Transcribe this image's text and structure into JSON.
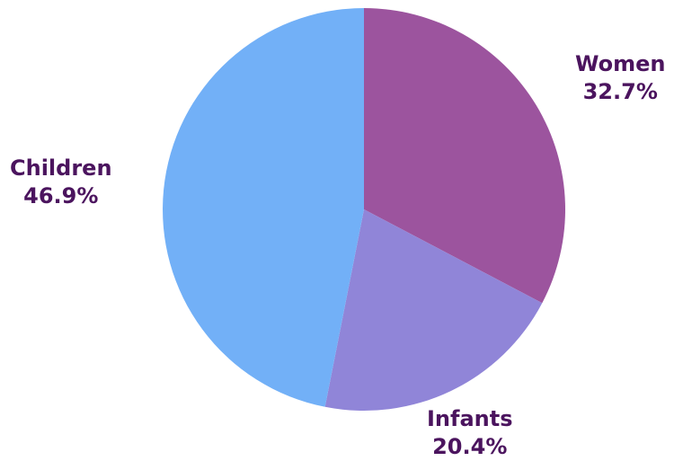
{
  "chart_data": {
    "type": "pie",
    "title": "",
    "slices": [
      {
        "label": "Women",
        "value": 32.7,
        "value_label": "32.7%",
        "color": "#9c549e"
      },
      {
        "label": "Infants",
        "value": 20.4,
        "value_label": "20.4%",
        "color": "#9085d8"
      },
      {
        "label": "Children",
        "value": 46.9,
        "value_label": "46.9%",
        "color": "#72b0f7"
      }
    ],
    "start_angle_deg": 0,
    "direction": "clockwise",
    "legend": "none",
    "label_color": "#4b145e"
  }
}
